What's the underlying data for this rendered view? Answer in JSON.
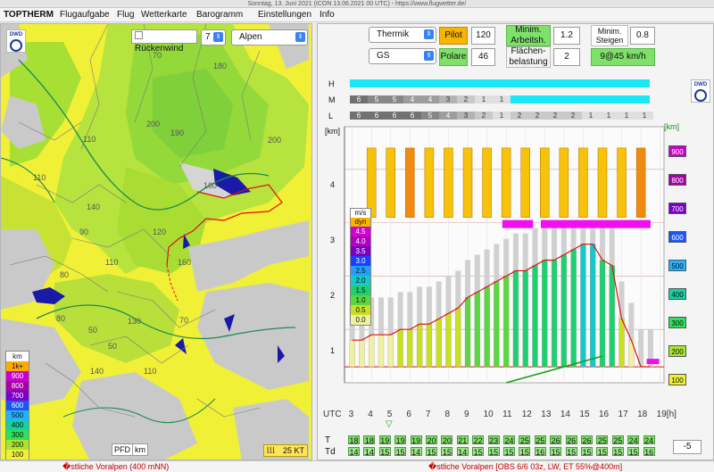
{
  "window": {
    "title": "Sonntag, 13. Juni 2021 (ICON 13.06.2021 00 UTC) - https://www.flugwetter.de/"
  },
  "menu": [
    {
      "label": "TOPTHERM"
    },
    {
      "label": "Flugaufgabe"
    },
    {
      "label": "Flug"
    },
    {
      "label": "Wetterkarte"
    },
    {
      "label": "Barogramm"
    },
    {
      "label": "Einstellungen"
    },
    {
      "label": "Info"
    }
  ],
  "map": {
    "wind_checkbox_label": "Rückenwind",
    "wind_value": "7",
    "region_select": "Alpen",
    "contour_labels": [
      "70",
      "180",
      "200",
      "190",
      "110",
      "200",
      "160",
      "110",
      "140",
      "120",
      "90",
      "110",
      "160",
      "80",
      "80",
      "50",
      "130",
      "70",
      "50",
      "140",
      "110"
    ],
    "legend_unit": "km",
    "legend_items": [
      {
        "label": "1k+",
        "color": "#ffaa00"
      },
      {
        "label": "900",
        "color": "#cc00cc"
      },
      {
        "label": "800",
        "color": "#a800a8"
      },
      {
        "label": "700",
        "color": "#7b00c8"
      },
      {
        "label": "600",
        "color": "#1a56ff"
      },
      {
        "label": "500",
        "color": "#22b3ff"
      },
      {
        "label": "400",
        "color": "#15d0a0"
      },
      {
        "label": "300",
        "color": "#2fe05a"
      },
      {
        "label": "200",
        "color": "#a6e62e"
      },
      {
        "label": "100",
        "color": "#f0f037"
      }
    ],
    "pfd_label": "PFD",
    "km_button": "km",
    "scale_label": "25 KT",
    "logo_text": "DWD"
  },
  "controls": {
    "model_select": "Thermik",
    "aircraft_select": "GS",
    "pilot_label": "Pilot",
    "pilot_value": "120",
    "polare_label": "Polare",
    "polare_value": "46",
    "min_arbeit_label": "Minim. Arbeitsh.",
    "min_arbeit_value": "1.2",
    "min_steigen_label": "Minim. Steigen",
    "min_steigen_value": "0.8",
    "flaechen_label": "Flächen-belastung",
    "flaechen_value": "2",
    "wind_result": "9@45 km/h"
  },
  "cloud_rows": {
    "labels": [
      "H",
      "M",
      "L"
    ],
    "M": [
      "6",
      "5",
      "5",
      "4",
      "4",
      "3",
      "2",
      "1",
      "1"
    ],
    "L": [
      "6",
      "6",
      "6",
      "6",
      "5",
      "4",
      "3",
      "2",
      "1",
      "2",
      "2",
      "2",
      "2",
      "1",
      "1",
      "1",
      "1"
    ]
  },
  "chart": {
    "y_unit": "[km]",
    "y_ticks": [
      "4",
      "3",
      "2",
      "1"
    ],
    "x_unit": "UTC",
    "x_ticks": [
      "3",
      "4",
      "5",
      "6",
      "7",
      "8",
      "9",
      "10",
      "11",
      "12",
      "13",
      "14",
      "15",
      "16",
      "17",
      "18",
      "19[h]"
    ],
    "climb_unit": "m/s",
    "climb_sub": "dyn",
    "climb_scale": [
      {
        "label": "4.5",
        "color": "#d000d0"
      },
      {
        "label": "4.0",
        "color": "#b000c0"
      },
      {
        "label": "3.5",
        "color": "#7a00c0"
      },
      {
        "label": "3.0",
        "color": "#1a40ff"
      },
      {
        "label": "2.5",
        "color": "#1fa0ff"
      },
      {
        "label": "2.0",
        "color": "#16c8c8"
      },
      {
        "label": "1.5",
        "color": "#1ed070"
      },
      {
        "label": "1.0",
        "color": "#5ad640"
      },
      {
        "label": "0.5",
        "color": "#c8e020"
      },
      {
        "label": "0.0",
        "color": "#f0f0a0"
      }
    ],
    "right_scale_unit": "[km]",
    "right_scale": [
      {
        "label": "900",
        "color": "#cc00cc"
      },
      {
        "label": "800",
        "color": "#a800a8"
      },
      {
        "label": "700",
        "color": "#7b00c8"
      },
      {
        "label": "600",
        "color": "#1a56ff"
      },
      {
        "label": "500",
        "color": "#22b3ff"
      },
      {
        "label": "400",
        "color": "#15d0a0"
      },
      {
        "label": "300",
        "color": "#2fe05a"
      },
      {
        "label": "200",
        "color": "#a6e62e"
      },
      {
        "label": "100",
        "color": "#f0f037"
      }
    ],
    "offset_value": "-5"
  },
  "chart_data": {
    "type": "bar",
    "x": [
      3,
      3.5,
      4,
      4.5,
      5,
      5.5,
      6,
      6.5,
      7,
      7.5,
      8,
      8.5,
      9,
      9.5,
      10,
      10.5,
      11,
      11.5,
      12,
      12.5,
      13,
      13.5,
      14,
      14.5,
      15,
      15.5,
      16,
      16.5,
      17,
      17.5,
      18,
      18.5
    ],
    "thermal_top_km": [
      0.8,
      0.8,
      0.9,
      0.9,
      0.9,
      1.0,
      1.0,
      1.1,
      1.1,
      1.2,
      1.3,
      1.4,
      1.6,
      1.7,
      1.8,
      1.9,
      2.0,
      2.1,
      2.1,
      2.2,
      2.3,
      2.3,
      2.4,
      2.5,
      2.6,
      2.6,
      2.3,
      2.2,
      1.2,
      0.8,
      0.3,
      0.3
    ],
    "climb_ms": [
      0.3,
      0.3,
      0.3,
      0.4,
      0.4,
      0.5,
      0.5,
      0.5,
      0.5,
      0.6,
      0.7,
      0.8,
      1.0,
      1.1,
      1.2,
      1.3,
      1.4,
      1.5,
      1.5,
      1.6,
      1.7,
      1.7,
      1.8,
      1.9,
      2.0,
      2.1,
      1.9,
      1.6,
      0.5,
      0.3,
      0.2,
      0.2
    ],
    "ylim": [
      0,
      4.8
    ]
  },
  "temps": {
    "T_label": "T",
    "Td_label": "Td",
    "T": [
      "18",
      "18",
      "19",
      "19",
      "19",
      "20",
      "20",
      "21",
      "22",
      "23",
      "24",
      "25",
      "25",
      "26",
      "26",
      "26",
      "25",
      "25",
      "24",
      "24"
    ],
    "Td": [
      "14",
      "14",
      "15",
      "15",
      "14",
      "15",
      "15",
      "14",
      "15",
      "15",
      "15",
      "15",
      "16",
      "15",
      "15",
      "15",
      "15",
      "15",
      "15",
      "16"
    ]
  },
  "status": {
    "left": "�stliche Voralpen (400 mNN)",
    "right": "�stliche Voralpen [OBS 6/6 03z, LW, ET  55%@400m]"
  }
}
